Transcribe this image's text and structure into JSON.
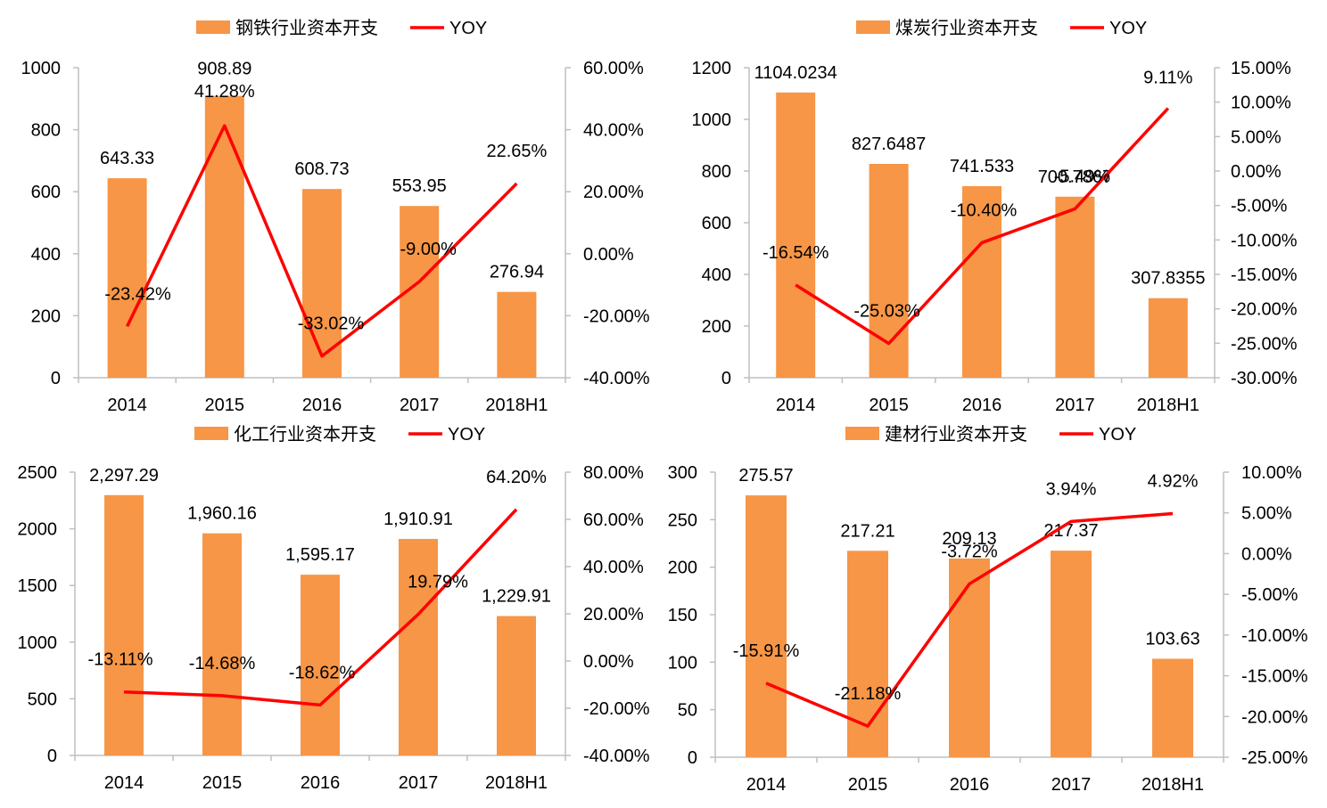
{
  "colors": {
    "bar": "#F79646",
    "line": "#FF0000",
    "axis": "#BFBFBF"
  },
  "chart_data": [
    {
      "type": "bar+line",
      "categories": [
        "2014",
        "2015",
        "2016",
        "2017",
        "2018H1"
      ],
      "bar_series": {
        "name": "钢铁行业资本开支",
        "values": [
          643.33,
          908.89,
          608.73,
          553.95,
          276.94
        ],
        "labels": [
          "643.33",
          "908.89",
          "608.73",
          "553.95",
          "276.94"
        ]
      },
      "line_series": {
        "name": "YOY",
        "values": [
          -23.42,
          41.28,
          -33.02,
          -9.0,
          22.65
        ],
        "labels": [
          "-23.42%",
          "41.28%",
          "-33.02%",
          "-9.00%",
          "22.65%"
        ]
      },
      "ylim_left": [
        0,
        1000
      ],
      "yticks_left": [
        "0",
        "200",
        "400",
        "600",
        "800",
        "1000"
      ],
      "ylim_right": [
        -40,
        60
      ],
      "yticks_right": [
        "-40.00%",
        "-20.00%",
        "0.00%",
        "20.00%",
        "40.00%",
        "60.00%"
      ],
      "legend": "top-center",
      "grid": false
    },
    {
      "type": "bar+line",
      "categories": [
        "2014",
        "2015",
        "2016",
        "2017",
        "2018H1"
      ],
      "bar_series": {
        "name": "煤炭行业资本开支",
        "values": [
          1104.0234,
          827.6487,
          741.533,
          700.7867,
          307.8355
        ],
        "labels": [
          "1104.0234",
          "827.6487",
          "741.533",
          "700.7867",
          "307.8355"
        ]
      },
      "line_series": {
        "name": "YOY",
        "values": [
          -16.54,
          -25.03,
          -10.4,
          -5.49,
          9.11
        ],
        "labels": [
          "-16.54%",
          "-25.03%",
          "-10.40%",
          "-5.49%",
          "9.11%"
        ]
      },
      "ylim_left": [
        0,
        1200
      ],
      "yticks_left": [
        "0",
        "200",
        "400",
        "600",
        "800",
        "1000",
        "1200"
      ],
      "ylim_right": [
        -30,
        15
      ],
      "yticks_right": [
        "-30.00%",
        "-25.00%",
        "-20.00%",
        "-15.00%",
        "-10.00%",
        "-5.00%",
        "0.00%",
        "5.00%",
        "10.00%",
        "15.00%"
      ],
      "legend": "top-center",
      "grid": false
    },
    {
      "type": "bar+line",
      "categories": [
        "2014",
        "2015",
        "2016",
        "2017",
        "2018H1"
      ],
      "bar_series": {
        "name": "化工行业资本开支",
        "values": [
          2297.29,
          1960.16,
          1595.17,
          1910.91,
          1229.91
        ],
        "labels": [
          "2,297.29",
          "1,960.16",
          "1,595.17",
          "1,910.91",
          "1,229.91"
        ]
      },
      "line_series": {
        "name": "YOY",
        "values": [
          -13.11,
          -14.68,
          -18.62,
          19.79,
          64.2
        ],
        "labels": [
          "-13.11%",
          "-14.68%",
          "-18.62%",
          "19.79%",
          "64.20%"
        ]
      },
      "ylim_left": [
        0,
        2500
      ],
      "yticks_left": [
        "0",
        "500",
        "1000",
        "1500",
        "2000",
        "2500"
      ],
      "ylim_right": [
        -40,
        80
      ],
      "yticks_right": [
        "-40.00%",
        "-20.00%",
        "0.00%",
        "20.00%",
        "40.00%",
        "60.00%",
        "80.00%"
      ],
      "legend": "top-center",
      "grid": false
    },
    {
      "type": "bar+line",
      "categories": [
        "2014",
        "2015",
        "2016",
        "2017",
        "2018H1"
      ],
      "bar_series": {
        "name": "建材行业资本开支",
        "values": [
          275.57,
          217.21,
          209.13,
          217.37,
          103.63
        ],
        "labels": [
          "275.57",
          "217.21",
          "209.13",
          "217.37",
          "103.63"
        ]
      },
      "line_series": {
        "name": "YOY",
        "values": [
          -15.91,
          -21.18,
          -3.72,
          3.94,
          4.92
        ],
        "labels": [
          "-15.91%",
          "-21.18%",
          "-3.72%",
          "3.94%",
          "4.92%"
        ]
      },
      "ylim_left": [
        0,
        300
      ],
      "yticks_left": [
        "0",
        "50",
        "100",
        "150",
        "200",
        "250",
        "300"
      ],
      "ylim_right": [
        -25,
        10
      ],
      "yticks_right": [
        "-25.00%",
        "-20.00%",
        "-15.00%",
        "-10.00%",
        "-5.00%",
        "0.00%",
        "5.00%",
        "10.00%"
      ],
      "legend": "top-center",
      "grid": false
    }
  ]
}
